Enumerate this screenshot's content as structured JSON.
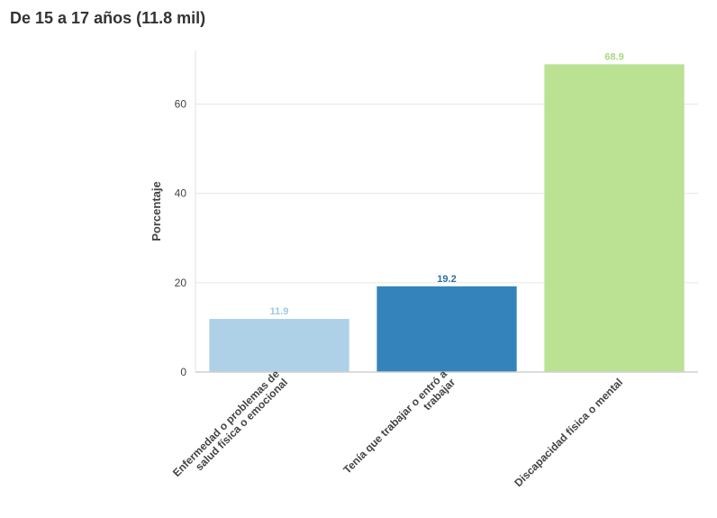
{
  "chart_data": {
    "type": "bar",
    "title": "De 15 a 17 años (11.8 mil)",
    "xlabel": "",
    "ylabel": "Porcentaje",
    "ylim": [
      0,
      72
    ],
    "yticks": [
      0,
      20,
      40,
      60
    ],
    "grid": true,
    "categories": [
      [
        "Enfermedad o problemas de",
        "salud física o emocional"
      ],
      [
        "Tenía que trabajar o entró a",
        "trabajar"
      ],
      [
        "Discapacidad física o mental"
      ]
    ],
    "values": [
      11.9,
      19.2,
      68.9
    ],
    "colors": [
      "#aed1e7",
      "#3484bb",
      "#bbe193"
    ],
    "label_colors": [
      "#9ec8e2",
      "#2a6ea3",
      "#a9d87f"
    ]
  }
}
